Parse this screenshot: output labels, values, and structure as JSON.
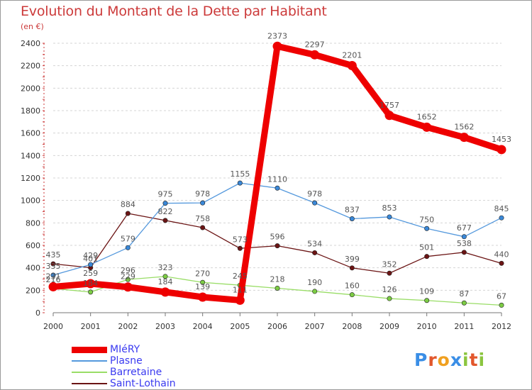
{
  "title": "Evolution du Montant de la Dette par Habitant",
  "subtitle": "(en €)",
  "logo": {
    "text": "Proxiti",
    "letters": [
      {
        "ch": "P",
        "color": "#3a8ee6"
      },
      {
        "ch": "r",
        "color": "#e2572c"
      },
      {
        "ch": "o",
        "color": "#f0a020"
      },
      {
        "ch": "x",
        "color": "#3a8ee6"
      },
      {
        "ch": "i",
        "color": "#8bc53f"
      },
      {
        "ch": "t",
        "color": "#e2572c"
      },
      {
        "ch": "i",
        "color": "#8bc53f"
      }
    ]
  },
  "chart_data": {
    "type": "line",
    "categories": [
      "2000",
      "2001",
      "2002",
      "2003",
      "2004",
      "2005",
      "2006",
      "2007",
      "2008",
      "2009",
      "2010",
      "2011",
      "2012"
    ],
    "ylim": [
      0,
      2400
    ],
    "y_ticks": [
      0,
      200,
      400,
      600,
      800,
      1000,
      1200,
      1400,
      1600,
      1800,
      2000,
      2200,
      2400
    ],
    "grid": true,
    "legend_position": "bottom-left",
    "series": [
      {
        "name": "Saint-Lothain",
        "color": "#6b1414",
        "marker": "#6b1414",
        "values": [
          435,
          401,
          884,
          822,
          758,
          573,
          596,
          534,
          399,
          352,
          501,
          538,
          440
        ],
        "labels": [
          "435",
          "401",
          "884",
          "822",
          "758",
          "573",
          "596",
          "534",
          "399",
          "352",
          "501",
          "538",
          "440"
        ]
      },
      {
        "name": "Barretaine",
        "color": "#99dd66",
        "marker": "#7ccc44",
        "values": [
          216,
          184,
          296,
          323,
          270,
          245,
          218,
          190,
          160,
          126,
          109,
          87,
          67
        ],
        "labels": [
          "216",
          "184",
          "296",
          "323",
          "270",
          "245",
          "218",
          "190",
          "160",
          "126",
          "109",
          "87",
          "67"
        ]
      },
      {
        "name": "Plasne",
        "color": "#5599dd",
        "marker": "#3a88d8",
        "values": [
          335,
          429,
          579,
          975,
          978,
          1155,
          1110,
          978,
          837,
          853,
          750,
          677,
          845
        ],
        "labels": [
          "335",
          "429",
          "579",
          "975",
          "978",
          "1155",
          "1110",
          "978",
          "837",
          "853",
          "750",
          "677",
          "845"
        ]
      },
      {
        "name": "MIéRY",
        "color": "#ee0000",
        "marker": "#ee0000",
        "values": [
          231,
          259,
          229,
          184,
          139,
          111,
          2373,
          2297,
          2201,
          1757,
          1652,
          1562,
          1453
        ],
        "labels": [
          "231",
          "259",
          "229",
          "184",
          "139",
          "111",
          "2373",
          "2297",
          "2201",
          "1757",
          "1652",
          "1562",
          "1453"
        ]
      }
    ]
  }
}
